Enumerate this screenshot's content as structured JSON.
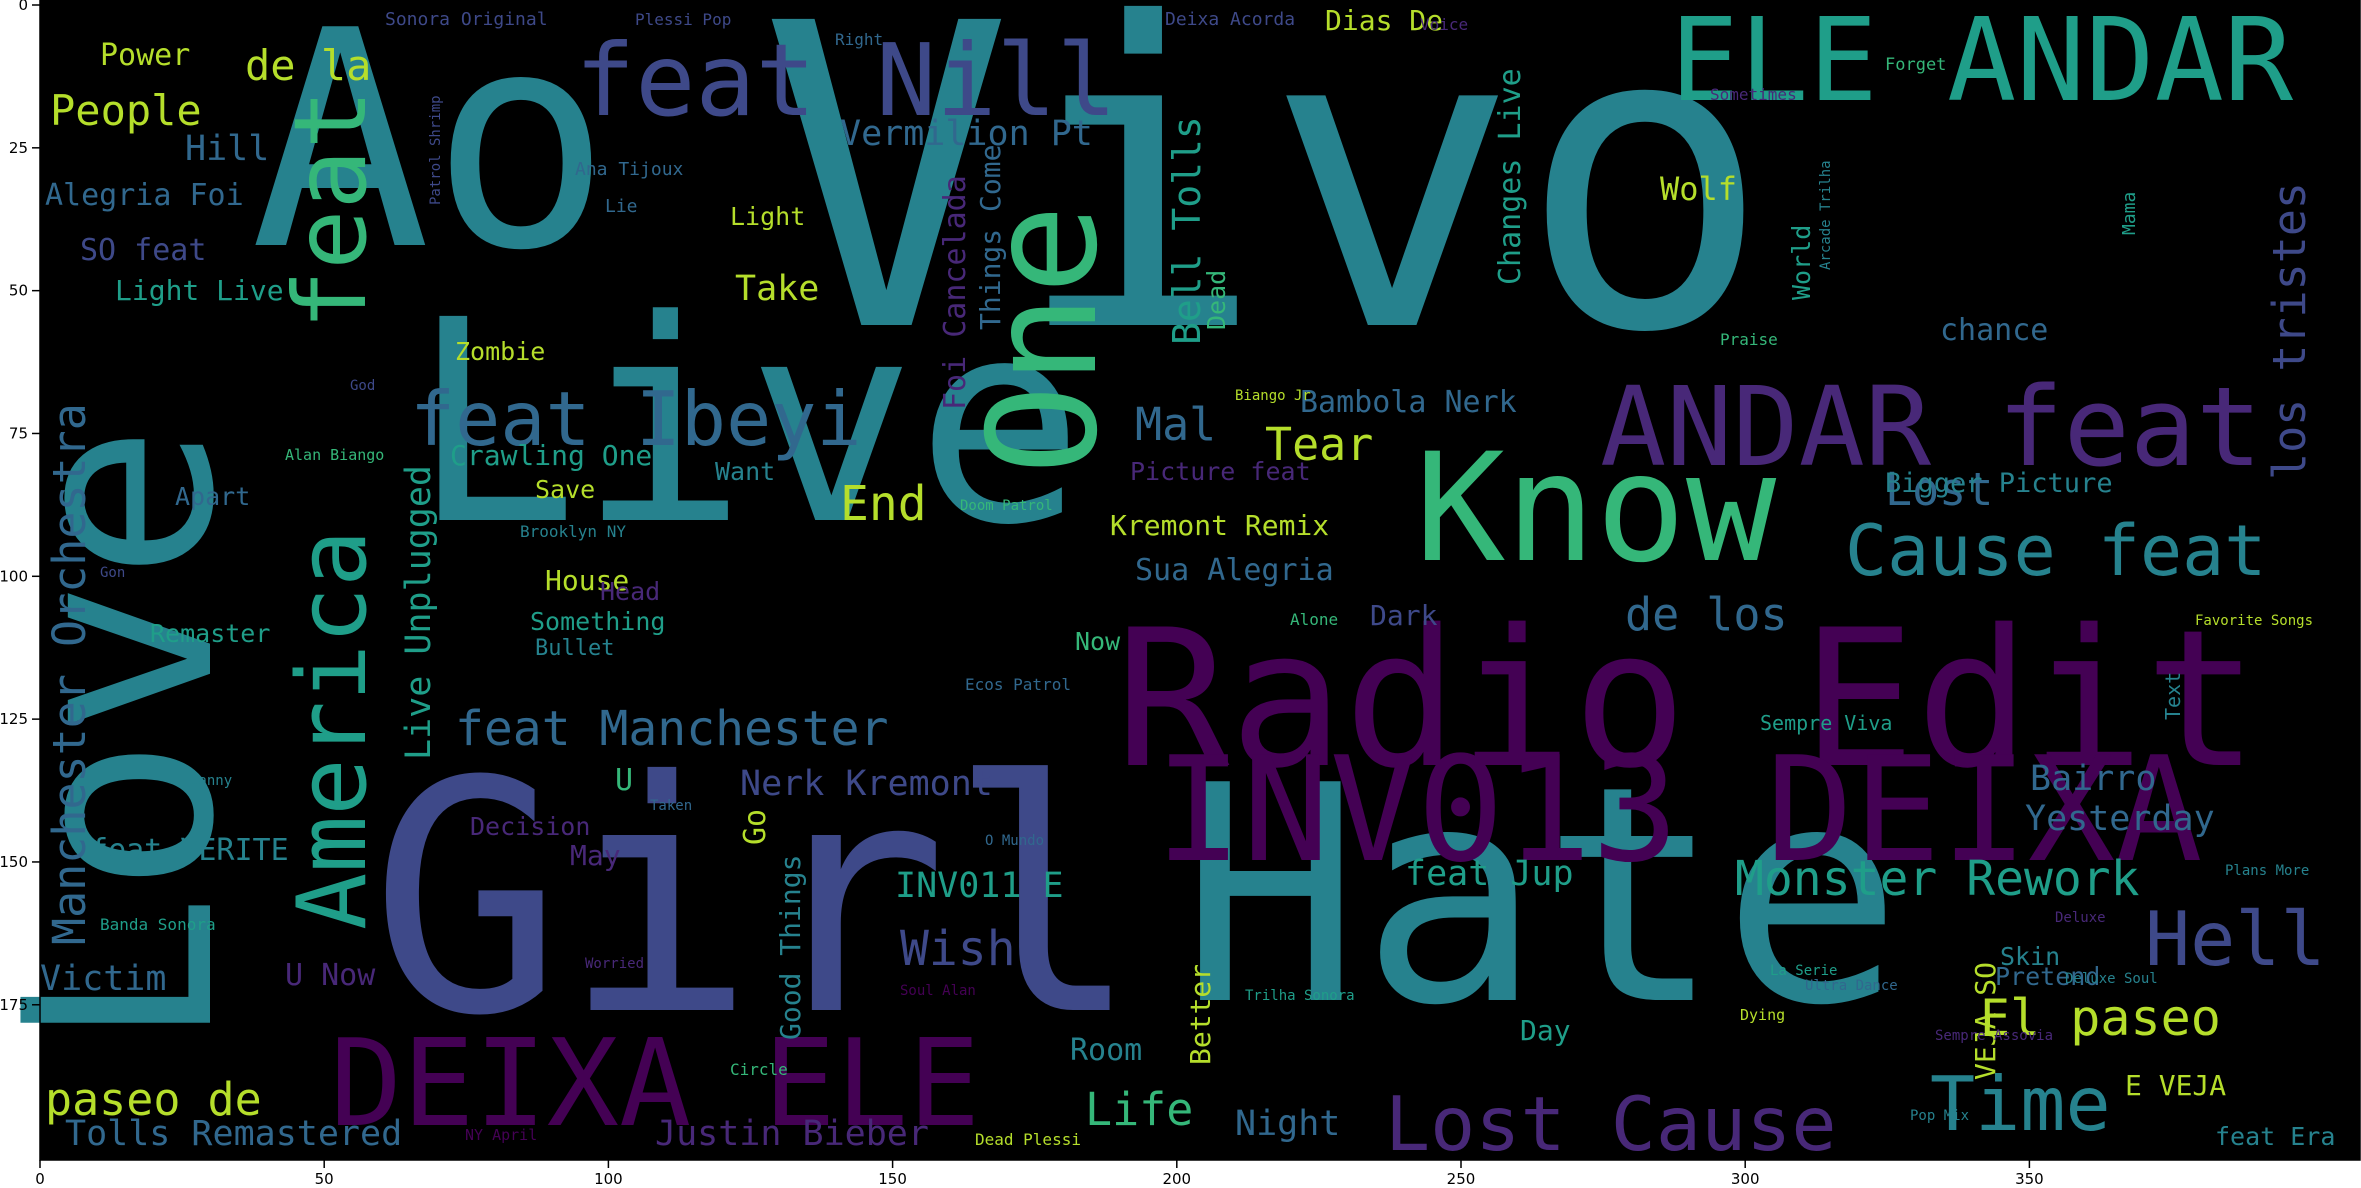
{
  "figure": {
    "background_color": "#000000",
    "axes": {
      "x_ticks": [
        "0",
        "50",
        "100",
        "150",
        "200",
        "250",
        "300",
        "350"
      ],
      "y_ticks": [
        "0",
        "25",
        "50",
        "75",
        "100",
        "125",
        "150",
        "175"
      ],
      "x_range": [
        0,
        400
      ],
      "y_range": [
        200,
        0
      ]
    },
    "palette": [
      "#440154",
      "#482878",
      "#3e4989",
      "#31688e",
      "#26828e",
      "#1f9e89",
      "#35b779",
      "#6ece58",
      "#b5de2b",
      "#fde725"
    ]
  },
  "words": [
    {
      "text": "Ao",
      "color": "#26828e"
    },
    {
      "text": "Vivo",
      "color": "#26828e"
    },
    {
      "text": "Live",
      "color": "#26828e"
    },
    {
      "text": "Girl",
      "color": "#3e4989"
    },
    {
      "text": "Hate",
      "color": "#26828e"
    },
    {
      "text": "Love",
      "color": "#26828e"
    },
    {
      "text": "Radio Edit",
      "color": "#440154"
    },
    {
      "text": "Know",
      "color": "#35b779"
    },
    {
      "text": "INV013 DEIXA",
      "color": "#440154"
    },
    {
      "text": "DEIXA ELE",
      "color": "#440154"
    },
    {
      "text": "One",
      "color": "#35b779"
    },
    {
      "text": "ELE ANDAR",
      "color": "#1f9e89"
    },
    {
      "text": "ANDAR feat",
      "color": "#482878"
    },
    {
      "text": "feat Nill",
      "color": "#3e4989"
    },
    {
      "text": "America",
      "color": "#1f9e89"
    },
    {
      "text": "feat",
      "color": "#35b779"
    },
    {
      "text": "feat Ibeyi",
      "color": "#31688e"
    },
    {
      "text": "Lost Cause",
      "color": "#482878"
    },
    {
      "text": "Cause feat",
      "color": "#26828e"
    },
    {
      "text": "Time",
      "color": "#26828e"
    },
    {
      "text": "Hell",
      "color": "#3e4989"
    },
    {
      "text": "El paseo",
      "color": "#b5de2b"
    },
    {
      "text": "Monster Rework",
      "color": "#1f9e89"
    },
    {
      "text": "feat Manchester",
      "color": "#31688e"
    },
    {
      "text": "Manchester Orchestra",
      "color": "#31688e"
    },
    {
      "text": "de los",
      "color": "#31688e"
    },
    {
      "text": "Lost",
      "color": "#31688e"
    },
    {
      "text": "los tristes",
      "color": "#3e4989"
    },
    {
      "text": "paseo de",
      "color": "#b5de2b"
    },
    {
      "text": "Tolls Remastered",
      "color": "#31688e"
    },
    {
      "text": "Justin Bieber",
      "color": "#482878"
    },
    {
      "text": "Life",
      "color": "#35b779"
    },
    {
      "text": "Wish",
      "color": "#3e4989"
    },
    {
      "text": "End",
      "color": "#b5de2b"
    },
    {
      "text": "Tear",
      "color": "#b5de2b"
    },
    {
      "text": "Mal",
      "color": "#31688e"
    },
    {
      "text": "People",
      "color": "#b5de2b"
    },
    {
      "text": "de la",
      "color": "#b5de2b"
    },
    {
      "text": "Hill",
      "color": "#31688e"
    },
    {
      "text": "Power",
      "color": "#b5de2b"
    },
    {
      "text": "Alegria Foi",
      "color": "#31688e"
    },
    {
      "text": "SO feat",
      "color": "#3e4989"
    },
    {
      "text": "Light Live",
      "color": "#1f9e89"
    },
    {
      "text": "Vermilion Pt",
      "color": "#31688e"
    },
    {
      "text": "Wolf",
      "color": "#b5de2b"
    },
    {
      "text": "Light",
      "color": "#b5de2b"
    },
    {
      "text": "Take",
      "color": "#b5de2b"
    },
    {
      "text": "Foi Cancelada",
      "color": "#482878"
    },
    {
      "text": "Things Come",
      "color": "#31688e"
    },
    {
      "text": "Bell Tolls",
      "color": "#1f9e89"
    },
    {
      "text": "Changes Live",
      "color": "#1f9e89"
    },
    {
      "text": "Bambola Nerk",
      "color": "#31688e"
    },
    {
      "text": "Crawling One",
      "color": "#1f9e89"
    },
    {
      "text": "Zombie",
      "color": "#b5de2b"
    },
    {
      "text": "Kremont Remix",
      "color": "#b5de2b"
    },
    {
      "text": "Sua Alegria",
      "color": "#31688e"
    },
    {
      "text": "Picture feat",
      "color": "#482878"
    },
    {
      "text": "Bigger Picture",
      "color": "#26828e"
    },
    {
      "text": "Apart",
      "color": "#31688e"
    },
    {
      "text": "Save",
      "color": "#b5de2b"
    },
    {
      "text": "Want",
      "color": "#26828e"
    },
    {
      "text": "Live Unplugged",
      "color": "#1f9e89"
    },
    {
      "text": "House",
      "color": "#b5de2b"
    },
    {
      "text": "Head",
      "color": "#482878"
    },
    {
      "text": "Something",
      "color": "#1f9e89"
    },
    {
      "text": "Bullet",
      "color": "#26828e"
    },
    {
      "text": "Remaster",
      "color": "#1f9e89"
    },
    {
      "text": "Dark",
      "color": "#3e4989"
    },
    {
      "text": "Now",
      "color": "#35b779"
    },
    {
      "text": "Nerk Kremont",
      "color": "#3e4989"
    },
    {
      "text": "U",
      "color": "#35b779"
    },
    {
      "text": "Decision",
      "color": "#482878"
    },
    {
      "text": "May",
      "color": "#482878"
    },
    {
      "text": "Go",
      "color": "#b5de2b"
    },
    {
      "text": "Good Things",
      "color": "#26828e"
    },
    {
      "text": "INV011 E",
      "color": "#1f9e89"
    },
    {
      "text": "feat Jup",
      "color": "#1f9e89"
    },
    {
      "text": "feat VERITE",
      "color": "#26828e"
    },
    {
      "text": "Victim",
      "color": "#31688e"
    },
    {
      "text": "U Now",
      "color": "#482878"
    },
    {
      "text": "Bairro",
      "color": "#31688e"
    },
    {
      "text": "Yesterday",
      "color": "#31688e"
    },
    {
      "text": "VEJA SO",
      "color": "#b5de2b"
    },
    {
      "text": "Skin",
      "color": "#26828e"
    },
    {
      "text": "Pretend",
      "color": "#31688e"
    },
    {
      "text": "Day",
      "color": "#1f9e89"
    },
    {
      "text": "Night",
      "color": "#31688e"
    },
    {
      "text": "Room",
      "color": "#26828e"
    },
    {
      "text": "Better",
      "color": "#b5de2b"
    },
    {
      "text": "E VEJA",
      "color": "#b5de2b"
    },
    {
      "text": "feat Era",
      "color": "#26828e"
    },
    {
      "text": "Dias De",
      "color": "#b5de2b"
    },
    {
      "text": "chance",
      "color": "#31688e"
    },
    {
      "text": "World",
      "color": "#1f9e89"
    },
    {
      "text": "Dead",
      "color": "#35b779"
    },
    {
      "text": "Text",
      "color": "#26828e"
    },
    {
      "text": "Sempre Viva",
      "color": "#1f9e89"
    },
    {
      "text": "Sonora Original",
      "color": "#3e4989"
    },
    {
      "text": "Plessi Pop",
      "color": "#3e4989"
    },
    {
      "text": "Right",
      "color": "#31688e"
    },
    {
      "text": "Deixa Acorda",
      "color": "#3e4989"
    },
    {
      "text": "Voice",
      "color": "#482878"
    },
    {
      "text": "Forget",
      "color": "#35b779"
    },
    {
      "text": "Sometimes",
      "color": "#482878"
    },
    {
      "text": "Patrol Shrimp",
      "color": "#3e4989"
    },
    {
      "text": "Ana Tijoux",
      "color": "#31688e"
    },
    {
      "text": "Lie",
      "color": "#31688e"
    },
    {
      "text": "Ecos Patrol",
      "color": "#31688e"
    },
    {
      "text": "Dead Plessi",
      "color": "#b5de2b"
    },
    {
      "text": "Pop Mix",
      "color": "#26828e"
    },
    {
      "text": "Trilha Sonora",
      "color": "#1f9e89"
    },
    {
      "text": "Alan Biango",
      "color": "#35b779"
    },
    {
      "text": "Brooklyn NY",
      "color": "#26828e"
    },
    {
      "text": "Circle",
      "color": "#35b779"
    },
    {
      "text": "Banda Sonora",
      "color": "#1f9e89"
    },
    {
      "text": "Ultra Dance",
      "color": "#31688e"
    },
    {
      "text": "Alone",
      "color": "#35b779"
    },
    {
      "text": "Favorite Songs",
      "color": "#b5de2b"
    },
    {
      "text": "Dying",
      "color": "#b5de2b"
    },
    {
      "text": "Sempre Assovia",
      "color": "#482878"
    },
    {
      "text": "La Serie",
      "color": "#1f9e89"
    },
    {
      "text": "Plans More",
      "color": "#26828e"
    },
    {
      "text": "Deluxe",
      "color": "#482878"
    },
    {
      "text": "Taken",
      "color": "#31688e"
    },
    {
      "text": "O Mundo",
      "color": "#31688e"
    },
    {
      "text": "Danny",
      "color": "#26828e"
    },
    {
      "text": "Worried",
      "color": "#482878"
    },
    {
      "text": "NY April",
      "color": "#440154"
    },
    {
      "text": "Mama",
      "color": "#1f9e89"
    },
    {
      "text": "Praise",
      "color": "#35b779"
    },
    {
      "text": "Biango Jr",
      "color": "#b5de2b"
    },
    {
      "text": "Deluxe Soul",
      "color": "#26828e"
    },
    {
      "text": "Arcade Trilha",
      "color": "#26828e"
    },
    {
      "text": "God",
      "color": "#3e4989"
    },
    {
      "text": "Soul Alan",
      "color": "#440154"
    },
    {
      "text": "Doom Patrol",
      "color": "#35b779"
    },
    {
      "text": "Gon",
      "color": "#3e4989"
    }
  ]
}
